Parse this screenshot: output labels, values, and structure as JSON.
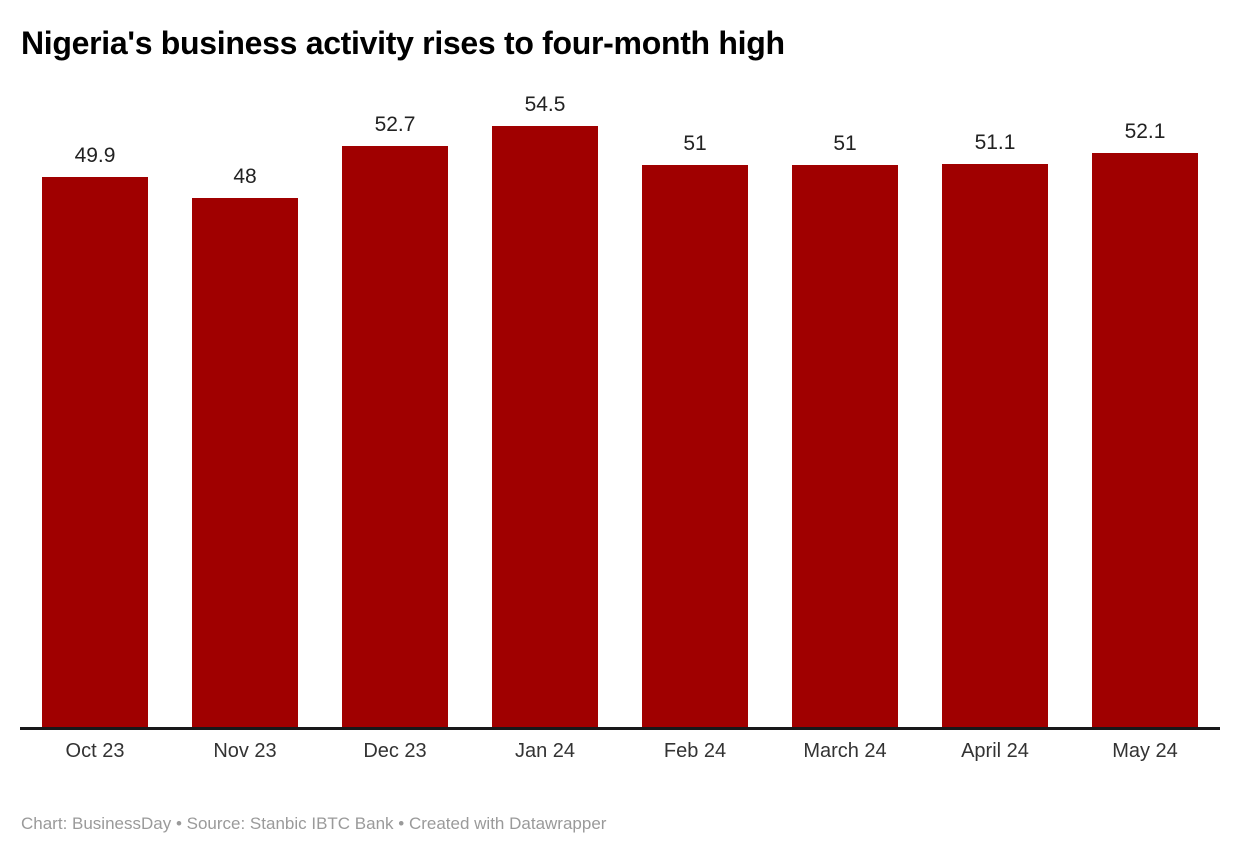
{
  "header": {
    "title": "Nigeria's business activity rises to four-month high"
  },
  "footer": {
    "attribution": "Chart: BusinessDay • Source: Stanbic IBTC Bank  • Created with Datawrapper"
  },
  "colors": {
    "bar": "#a00000",
    "axis_line": "#18181a",
    "title_text": "#000000",
    "value_label_text": "#222222",
    "category_label_text": "#333333",
    "footer_text": "#9a9a9a",
    "background": "#ffffff"
  },
  "chart_data": {
    "type": "bar",
    "title": "Nigeria's business activity rises to four-month high",
    "categories": [
      "Oct 23",
      "Nov 23",
      "Dec 23",
      "Jan 24",
      "Feb 24",
      "March 24",
      "April 24",
      "May 24"
    ],
    "values": [
      49.9,
      48,
      52.7,
      54.5,
      51,
      51,
      51.1,
      52.1
    ],
    "value_labels": [
      "49.9",
      "48",
      "52.7",
      "54.5",
      "51",
      "51",
      "51.1",
      "52.1"
    ],
    "xlabel": "",
    "ylabel": "",
    "ylim": [
      0,
      54.5
    ],
    "grid": false,
    "legend_position": "none",
    "bar_color": "#a00000",
    "value_labels_position": "above-bars",
    "baseline": 0
  }
}
